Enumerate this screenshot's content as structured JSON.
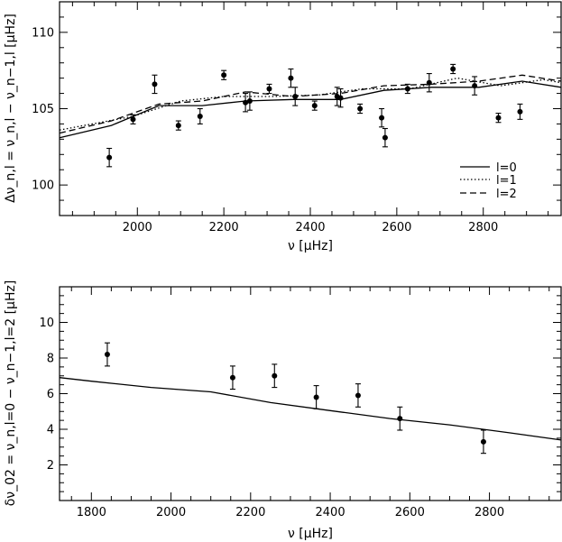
{
  "chart_data": [
    {
      "type": "scatter",
      "xlabel": "ν [μHz]",
      "ylabel": "Δν_n,l = ν_n,l − ν_n−1,l [μHz]",
      "xlim": [
        1820,
        2980
      ],
      "ylim": [
        98,
        112
      ],
      "xticks": [
        2000,
        2200,
        2400,
        2600,
        2800
      ],
      "yticks": [
        100,
        105,
        110
      ],
      "xtick_labels": [
        "2000",
        "2200",
        "2400",
        "2600",
        "2800"
      ],
      "ytick_labels": [
        "100",
        "105",
        "110"
      ],
      "legend": {
        "position": "bottom-right",
        "entries": [
          {
            "label": "l=0",
            "style": "solid"
          },
          {
            "label": "l=1",
            "style": "dotted"
          },
          {
            "label": "l=2",
            "style": "dashed"
          }
        ]
      },
      "series": [
        {
          "name": "l=0",
          "style": "solid",
          "x": [
            1820,
            1940,
            2050,
            2150,
            2250,
            2360,
            2470,
            2570,
            2680,
            2790,
            2890,
            2980
          ],
          "y": [
            103.1,
            103.9,
            105.2,
            105.2,
            105.5,
            105.6,
            105.6,
            106.2,
            106.4,
            106.4,
            106.8,
            106.4
          ]
        },
        {
          "name": "l=1",
          "style": "dotted",
          "x": [
            1820,
            1990,
            2100,
            2200,
            2310,
            2420,
            2520,
            2630,
            2740,
            2840,
            2940,
            2980
          ],
          "y": [
            103.6,
            104.5,
            105.5,
            105.8,
            105.8,
            105.9,
            106.3,
            106.3,
            107.0,
            106.5,
            106.9,
            106.7
          ]
        },
        {
          "name": "l=2",
          "style": "dashed",
          "x": [
            1820,
            1940,
            2050,
            2150,
            2250,
            2360,
            2470,
            2570,
            2680,
            2790,
            2890,
            2980
          ],
          "y": [
            103.4,
            104.2,
            105.3,
            105.5,
            106.1,
            105.8,
            106.0,
            106.5,
            106.6,
            106.8,
            107.2,
            106.8
          ]
        }
      ],
      "points": [
        {
          "x": 1935,
          "y": 101.8,
          "err": 0.6
        },
        {
          "x": 1990,
          "y": 104.3,
          "err": 0.3
        },
        {
          "x": 2040,
          "y": 106.6,
          "err": 0.6
        },
        {
          "x": 2095,
          "y": 103.9,
          "err": 0.3
        },
        {
          "x": 2145,
          "y": 104.5,
          "err": 0.5
        },
        {
          "x": 2200,
          "y": 107.2,
          "err": 0.3
        },
        {
          "x": 2250,
          "y": 105.4,
          "err": 0.6
        },
        {
          "x": 2260,
          "y": 105.5,
          "err": 0.6
        },
        {
          "x": 2305,
          "y": 106.3,
          "err": 0.3
        },
        {
          "x": 2355,
          "y": 107.0,
          "err": 0.6
        },
        {
          "x": 2365,
          "y": 105.8,
          "err": 0.6
        },
        {
          "x": 2410,
          "y": 105.2,
          "err": 0.3
        },
        {
          "x": 2462,
          "y": 105.8,
          "err": 0.6
        },
        {
          "x": 2470,
          "y": 105.7,
          "err": 0.6
        },
        {
          "x": 2515,
          "y": 105.0,
          "err": 0.3
        },
        {
          "x": 2565,
          "y": 104.4,
          "err": 0.6
        },
        {
          "x": 2573,
          "y": 103.1,
          "err": 0.6
        },
        {
          "x": 2625,
          "y": 106.3,
          "err": 0.3
        },
        {
          "x": 2675,
          "y": 106.7,
          "err": 0.6
        },
        {
          "x": 2730,
          "y": 107.6,
          "err": 0.3
        },
        {
          "x": 2780,
          "y": 106.5,
          "err": 0.6
        },
        {
          "x": 2835,
          "y": 104.4,
          "err": 0.3
        },
        {
          "x": 2885,
          "y": 104.8,
          "err": 0.5
        }
      ]
    },
    {
      "type": "scatter",
      "xlabel": "ν [μHz]",
      "ylabel": "δν_02 = ν_n,l=0 − ν_n−1,l=2 [μHz]",
      "xlim": [
        1720,
        2980
      ],
      "ylim": [
        0,
        12
      ],
      "xticks": [
        1800,
        2000,
        2200,
        2400,
        2600,
        2800
      ],
      "yticks": [
        2,
        4,
        6,
        8,
        10
      ],
      "xtick_labels": [
        "1800",
        "2000",
        "2200",
        "2400",
        "2600",
        "2800"
      ],
      "ytick_labels": [
        "2",
        "4",
        "6",
        "8",
        "10"
      ],
      "series": [
        {
          "name": "",
          "style": "solid",
          "x": [
            1720,
            1800,
            1950,
            2100,
            2250,
            2400,
            2550,
            2700,
            2850,
            2980
          ],
          "y": [
            6.9,
            6.7,
            6.35,
            6.1,
            5.5,
            5.05,
            4.6,
            4.25,
            3.8,
            3.4
          ]
        }
      ],
      "points": [
        {
          "x": 1840,
          "y": 8.2,
          "err": 0.65
        },
        {
          "x": 2155,
          "y": 6.9,
          "err": 0.65
        },
        {
          "x": 2260,
          "y": 7.0,
          "err": 0.65
        },
        {
          "x": 2365,
          "y": 5.8,
          "err": 0.65
        },
        {
          "x": 2470,
          "y": 5.9,
          "err": 0.65
        },
        {
          "x": 2575,
          "y": 4.6,
          "err": 0.65
        },
        {
          "x": 2785,
          "y": 3.3,
          "err": 0.65
        }
      ]
    }
  ]
}
